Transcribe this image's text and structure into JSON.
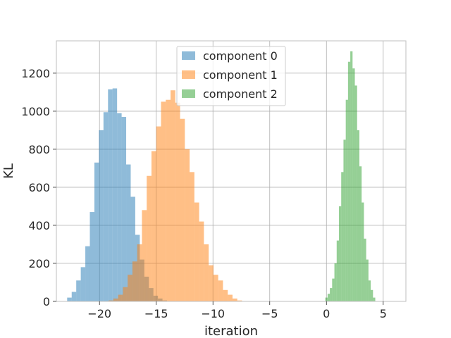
{
  "chart_data": {
    "type": "histogram",
    "title": "",
    "xlabel": "iteration",
    "ylabel": "KL",
    "xlim": [
      -23.8,
      7.0
    ],
    "ylim": [
      0,
      1370
    ],
    "xticks": [
      -20,
      -15,
      -10,
      -5,
      0,
      5
    ],
    "xtick_labels": [
      "−20",
      "−15",
      "−10",
      "−5",
      "0",
      "5"
    ],
    "yticks": [
      0,
      200,
      400,
      600,
      800,
      1000,
      1200
    ],
    "ytick_labels": [
      "0",
      "200",
      "400",
      "600",
      "800",
      "1000",
      "1200"
    ],
    "grid": true,
    "legend_position": "top-center",
    "series": [
      {
        "name": "component 0",
        "color": "#1f77b4",
        "alpha": 0.5,
        "bin_start": -22.85,
        "bin_width": 0.4,
        "counts": [
          20,
          50,
          110,
          180,
          290,
          470,
          730,
          900,
          995,
          1115,
          1120,
          990,
          970,
          720,
          550,
          350,
          220,
          130,
          70,
          30,
          15,
          5
        ]
      },
      {
        "name": "component 1",
        "color": "#ff7f0e",
        "alpha": 0.5,
        "bin_start": -19.2,
        "bin_width": 0.42,
        "counts": [
          5,
          15,
          35,
          75,
          140,
          210,
          300,
          480,
          660,
          790,
          920,
          1050,
          1060,
          1110,
          1045,
          960,
          800,
          680,
          520,
          420,
          300,
          190,
          140,
          110,
          60,
          35,
          15,
          5
        ]
      },
      {
        "name": "component 2",
        "color": "#2ca02c",
        "alpha": 0.5,
        "bin_start": -0.1,
        "bin_width": 0.2,
        "counts": [
          20,
          40,
          70,
          120,
          200,
          320,
          500,
          680,
          850,
          1060,
          1260,
          1315,
          1225,
          1135,
          900,
          710,
          520,
          330,
          220,
          110,
          60,
          20
        ]
      }
    ]
  }
}
